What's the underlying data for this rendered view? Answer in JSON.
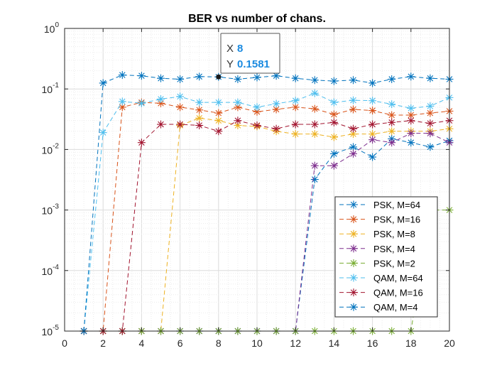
{
  "chart_data": {
    "type": "line",
    "title": "BER vs number of chans.",
    "xlabel": "",
    "ylabel": "",
    "xlim": [
      0,
      20
    ],
    "ylim": [
      1e-05,
      1
    ],
    "yscale": "log",
    "grid": true,
    "minor_grid": true,
    "legend_position": "bottom-right",
    "x_ticks": [
      0,
      2,
      4,
      6,
      8,
      10,
      12,
      14,
      16,
      18,
      20
    ],
    "x_tick_labels": [
      "0",
      "2",
      "4",
      "6",
      "8",
      "10",
      "12",
      "14",
      "16",
      "18",
      "20"
    ],
    "y_tick_labels": [
      {
        "base": "10",
        "exp": "-5",
        "value": 1e-05
      },
      {
        "base": "10",
        "exp": "-4",
        "value": 0.0001
      },
      {
        "base": "10",
        "exp": "-3",
        "value": 0.001
      },
      {
        "base": "10",
        "exp": "-2",
        "value": 0.01
      },
      {
        "base": "10",
        "exp": "-1",
        "value": 0.1
      },
      {
        "base": "10",
        "exp": "0",
        "value": 1
      }
    ],
    "x": [
      1,
      2,
      3,
      4,
      5,
      6,
      7,
      8,
      9,
      10,
      11,
      12,
      13,
      14,
      15,
      16,
      17,
      18,
      19,
      20
    ],
    "series": [
      {
        "name": "PSK, M=64",
        "color": "#0072BD",
        "values": [
          1e-05,
          1e-05,
          1e-05,
          1e-05,
          1e-05,
          1e-05,
          1e-05,
          1e-05,
          1e-05,
          1e-05,
          1e-05,
          1e-05,
          0.0032,
          0.0085,
          0.011,
          0.0075,
          0.015,
          0.013,
          0.011,
          0.014
        ]
      },
      {
        "name": "PSK, M=16",
        "color": "#D95319",
        "values": [
          1e-05,
          1e-05,
          0.05,
          0.06,
          0.058,
          0.05,
          0.045,
          0.04,
          0.05,
          0.042,
          0.046,
          0.05,
          0.047,
          0.038,
          0.046,
          0.044,
          0.037,
          0.037,
          0.04,
          0.043
        ]
      },
      {
        "name": "PSK, M=8",
        "color": "#EDB120",
        "values": [
          1e-05,
          1e-05,
          1e-05,
          1e-05,
          1e-05,
          0.025,
          0.033,
          0.03,
          0.025,
          0.024,
          0.02,
          0.018,
          0.018,
          0.016,
          0.018,
          0.018,
          0.02,
          0.02,
          0.02,
          0.022
        ]
      },
      {
        "name": "PSK, M=4",
        "color": "#7E2F8E",
        "values": [
          1e-05,
          1e-05,
          1e-05,
          1e-05,
          1e-05,
          1e-05,
          1e-05,
          1e-05,
          1e-05,
          1e-05,
          1e-05,
          1e-05,
          0.0054,
          0.0054,
          0.0085,
          0.0145,
          0.013,
          0.0185,
          0.0185,
          0.013
        ]
      },
      {
        "name": "PSK, M=2",
        "color": "#77AC30",
        "values": [
          1e-05,
          1e-05,
          1e-05,
          1e-05,
          1e-05,
          1e-05,
          1e-05,
          1e-05,
          1e-05,
          1e-05,
          1e-05,
          1e-05,
          1e-05,
          1e-05,
          1e-05,
          1e-05,
          1e-05,
          1e-05,
          0.001,
          0.001
        ]
      },
      {
        "name": "QAM, M=64",
        "color": "#4DBEEE",
        "values": [
          1e-05,
          0.019,
          0.062,
          0.058,
          0.068,
          0.075,
          0.06,
          0.06,
          0.06,
          0.05,
          0.057,
          0.064,
          0.085,
          0.06,
          0.065,
          0.064,
          0.056,
          0.048,
          0.052,
          0.072
        ]
      },
      {
        "name": "QAM, M=16",
        "color": "#A2142F",
        "values": [
          1e-05,
          1e-05,
          1e-05,
          0.013,
          0.026,
          0.026,
          0.025,
          0.02,
          0.03,
          0.025,
          0.022,
          0.026,
          0.026,
          0.028,
          0.022,
          0.026,
          0.028,
          0.03,
          0.027,
          0.03
        ]
      },
      {
        "name": "QAM, M=4",
        "color": "#0072BD",
        "values": [
          1e-05,
          0.125,
          0.17,
          0.165,
          0.15,
          0.145,
          0.16,
          0.1581,
          0.145,
          0.155,
          0.165,
          0.15,
          0.14,
          0.135,
          0.14,
          0.125,
          0.145,
          0.16,
          0.15,
          0.145
        ]
      }
    ],
    "datatip": {
      "x_label": "X",
      "x_value": "8",
      "y_label": "Y",
      "y_value": "0.1581",
      "x": 8,
      "y": 0.1581
    }
  }
}
